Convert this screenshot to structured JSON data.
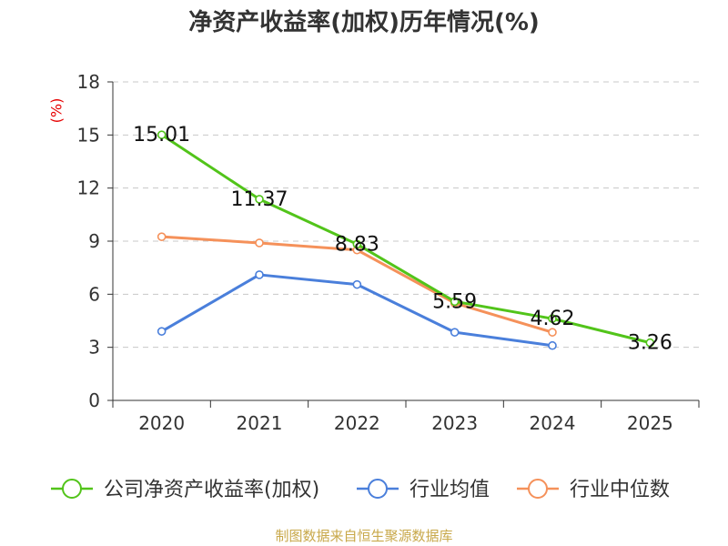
{
  "chart_data": {
    "type": "line",
    "title": "净资产收益率(加权)历年情况(%)",
    "ylabel": "(%)",
    "categories": [
      "2020",
      "2021",
      "2022",
      "2023",
      "2024",
      "2025"
    ],
    "ylim": [
      0,
      18
    ],
    "yticks": [
      0,
      3,
      6,
      9,
      12,
      15,
      18
    ],
    "series": [
      {
        "name": "公司净资产收益率(加权)",
        "color": "#52c41a",
        "values": [
          15.01,
          11.37,
          8.83,
          5.59,
          4.62,
          3.26
        ],
        "labels": [
          "15.01",
          "11.37",
          "8.83",
          "5.59",
          "4.62",
          "3.26"
        ]
      },
      {
        "name": "行业均值",
        "color": "#4a7fdb",
        "values": [
          3.9,
          7.1,
          6.55,
          3.85,
          3.1,
          null
        ]
      },
      {
        "name": "行业中位数",
        "color": "#f5915a",
        "values": [
          9.25,
          8.9,
          8.5,
          5.5,
          3.85,
          null
        ]
      }
    ],
    "legend_position": "bottom",
    "grid": true
  },
  "footer": {
    "source": "制图数据来自恒生聚源数据库"
  }
}
